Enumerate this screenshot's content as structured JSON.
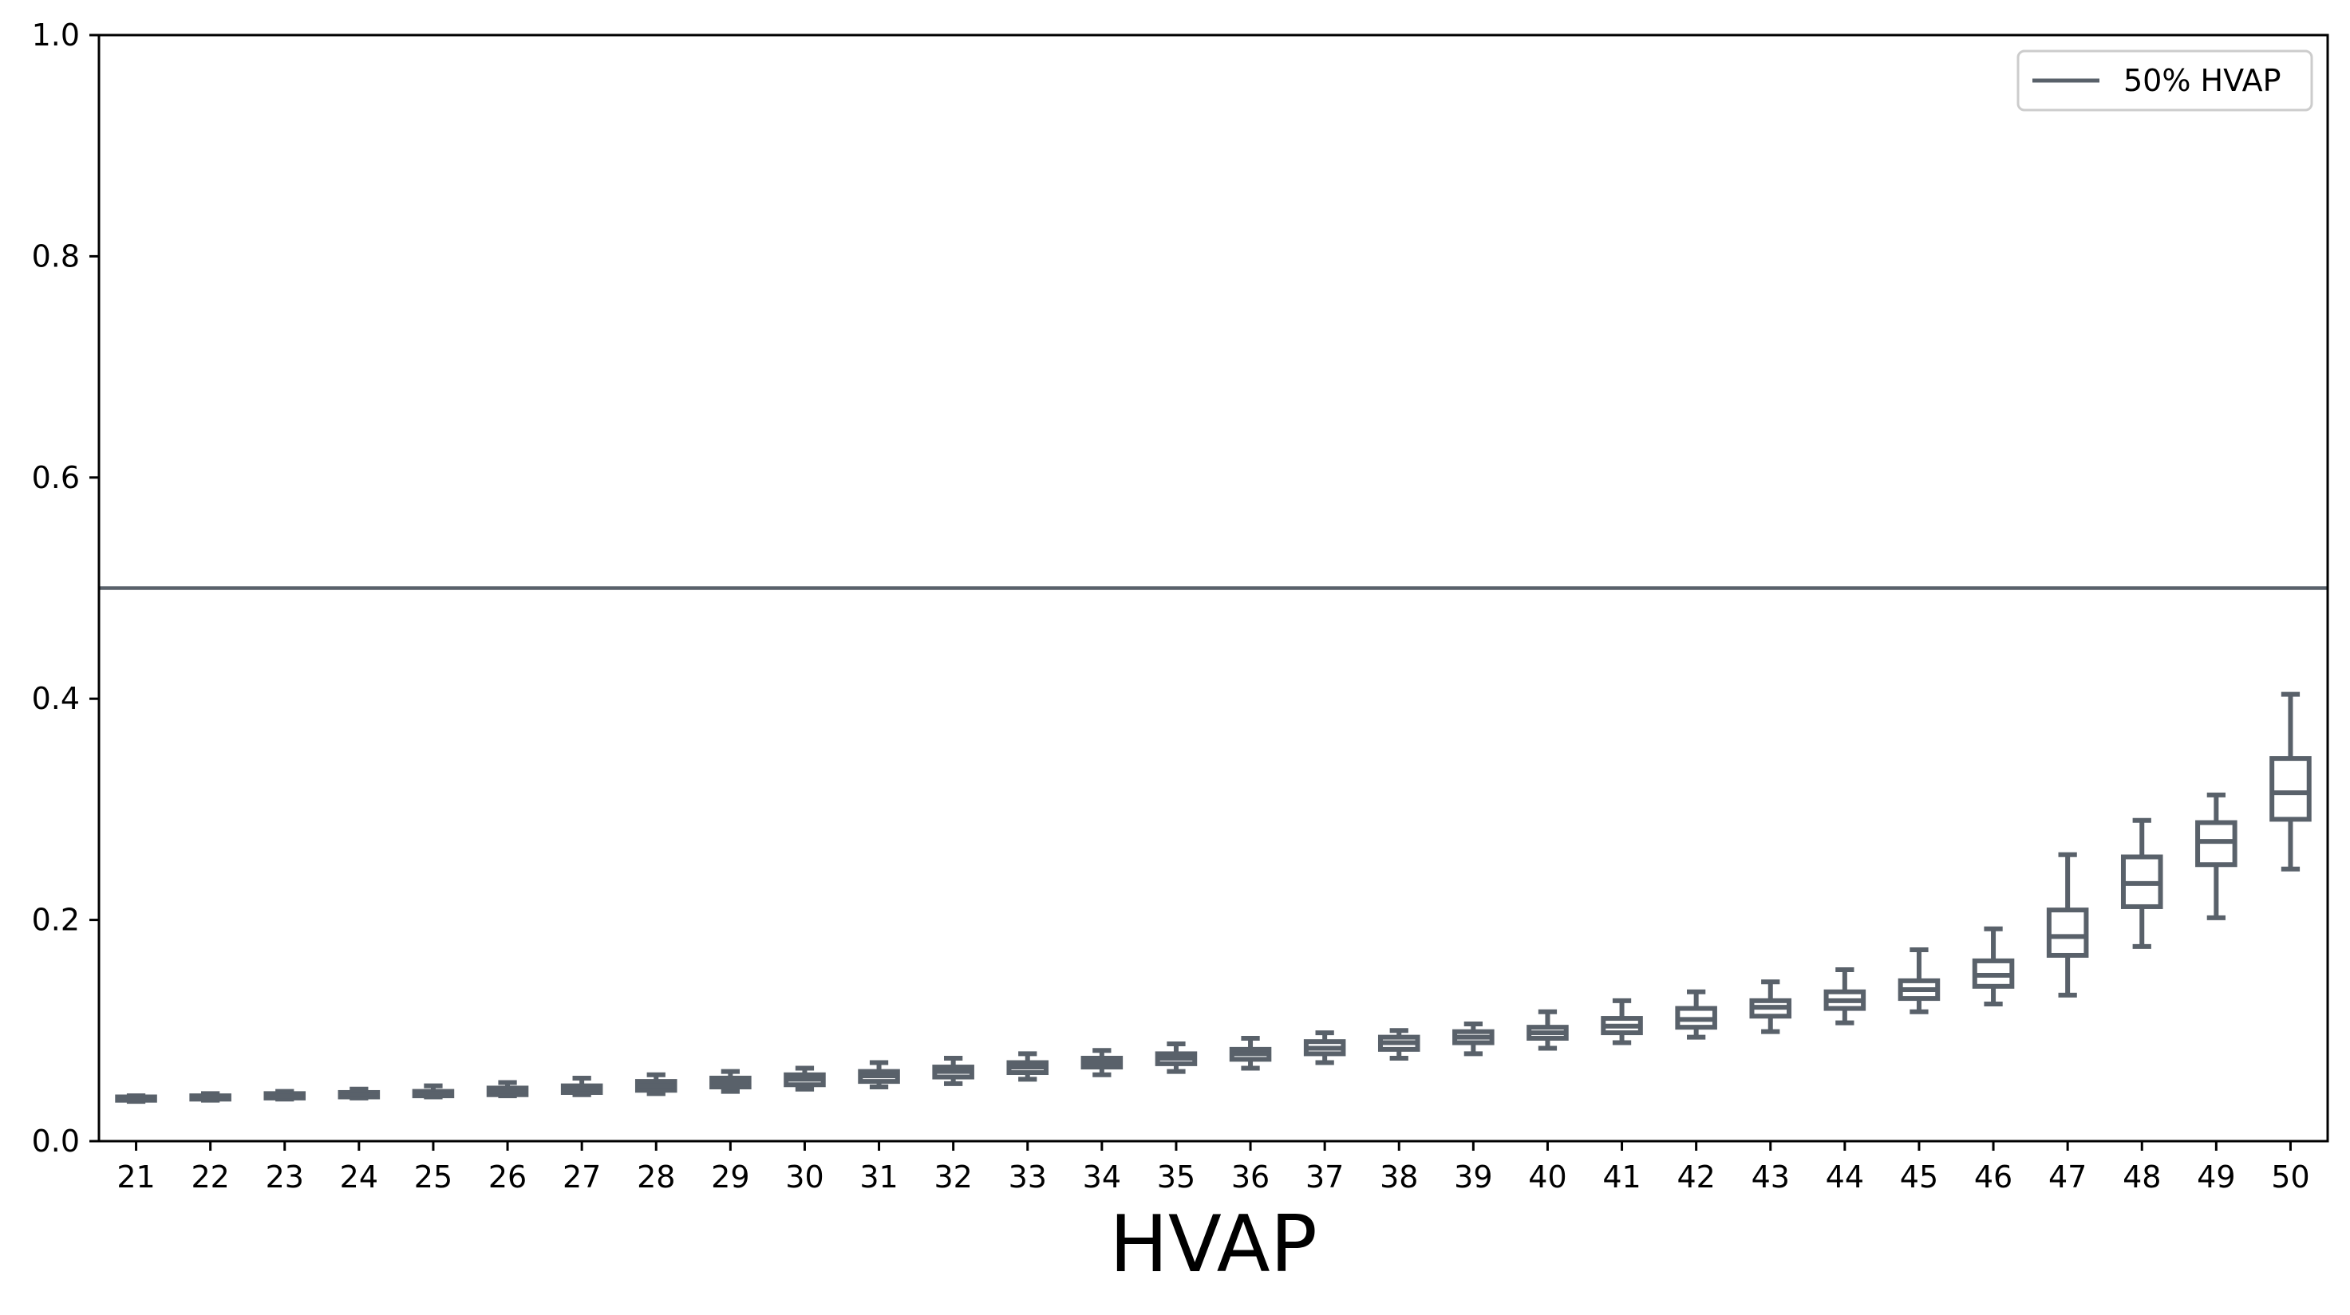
{
  "chart_data": {
    "type": "box",
    "title": "",
    "xlabel": "HVAP",
    "ylabel": "",
    "ylim": [
      0.0,
      1.0
    ],
    "yticks": [
      "0.0",
      "0.2",
      "0.4",
      "0.6",
      "0.8",
      "1.0"
    ],
    "categories": [
      "21",
      "22",
      "23",
      "24",
      "25",
      "26",
      "27",
      "28",
      "29",
      "30",
      "31",
      "32",
      "33",
      "34",
      "35",
      "36",
      "37",
      "38",
      "39",
      "40",
      "41",
      "42",
      "43",
      "44",
      "45",
      "46",
      "47",
      "48",
      "49",
      "50"
    ],
    "series": [
      {
        "boxes": [
          {
            "whislo": 0.036,
            "q1": 0.037,
            "med": 0.038,
            "q3": 0.04,
            "whishi": 0.041
          },
          {
            "whislo": 0.037,
            "q1": 0.038,
            "med": 0.04,
            "q3": 0.041,
            "whishi": 0.043
          },
          {
            "whislo": 0.038,
            "q1": 0.039,
            "med": 0.041,
            "q3": 0.043,
            "whishi": 0.045
          },
          {
            "whislo": 0.039,
            "q1": 0.04,
            "med": 0.042,
            "q3": 0.044,
            "whishi": 0.047
          },
          {
            "whislo": 0.04,
            "q1": 0.041,
            "med": 0.043,
            "q3": 0.045,
            "whishi": 0.05
          },
          {
            "whislo": 0.041,
            "q1": 0.042,
            "med": 0.045,
            "q3": 0.048,
            "whishi": 0.053
          },
          {
            "whislo": 0.042,
            "q1": 0.044,
            "med": 0.047,
            "q3": 0.05,
            "whishi": 0.057
          },
          {
            "whislo": 0.043,
            "q1": 0.046,
            "med": 0.05,
            "q3": 0.054,
            "whishi": 0.06
          },
          {
            "whislo": 0.045,
            "q1": 0.049,
            "med": 0.053,
            "q3": 0.057,
            "whishi": 0.063
          },
          {
            "whislo": 0.047,
            "q1": 0.051,
            "med": 0.056,
            "q3": 0.06,
            "whishi": 0.066
          },
          {
            "whislo": 0.049,
            "q1": 0.054,
            "med": 0.059,
            "q3": 0.063,
            "whishi": 0.071
          },
          {
            "whislo": 0.052,
            "q1": 0.058,
            "med": 0.063,
            "q3": 0.067,
            "whishi": 0.075
          },
          {
            "whislo": 0.056,
            "q1": 0.062,
            "med": 0.067,
            "q3": 0.071,
            "whishi": 0.079
          },
          {
            "whislo": 0.06,
            "q1": 0.067,
            "med": 0.071,
            "q3": 0.075,
            "whishi": 0.082
          },
          {
            "whislo": 0.063,
            "q1": 0.07,
            "med": 0.075,
            "q3": 0.079,
            "whishi": 0.088
          },
          {
            "whislo": 0.066,
            "q1": 0.074,
            "med": 0.079,
            "q3": 0.083,
            "whishi": 0.093
          },
          {
            "whislo": 0.071,
            "q1": 0.079,
            "med": 0.084,
            "q3": 0.09,
            "whishi": 0.098
          },
          {
            "whislo": 0.075,
            "q1": 0.083,
            "med": 0.089,
            "q3": 0.094,
            "whishi": 0.1
          },
          {
            "whislo": 0.079,
            "q1": 0.089,
            "med": 0.094,
            "q3": 0.099,
            "whishi": 0.106
          },
          {
            "whislo": 0.084,
            "q1": 0.093,
            "med": 0.098,
            "q3": 0.103,
            "whishi": 0.117
          },
          {
            "whislo": 0.089,
            "q1": 0.098,
            "med": 0.104,
            "q3": 0.111,
            "whishi": 0.127
          },
          {
            "whislo": 0.094,
            "q1": 0.103,
            "med": 0.11,
            "q3": 0.12,
            "whishi": 0.135
          },
          {
            "whislo": 0.099,
            "q1": 0.113,
            "med": 0.121,
            "q3": 0.127,
            "whishi": 0.144
          },
          {
            "whislo": 0.107,
            "q1": 0.12,
            "med": 0.127,
            "q3": 0.135,
            "whishi": 0.155
          },
          {
            "whislo": 0.117,
            "q1": 0.129,
            "med": 0.137,
            "q3": 0.145,
            "whishi": 0.173
          },
          {
            "whislo": 0.124,
            "q1": 0.14,
            "med": 0.15,
            "q3": 0.163,
            "whishi": 0.192
          },
          {
            "whislo": 0.132,
            "q1": 0.168,
            "med": 0.185,
            "q3": 0.209,
            "whishi": 0.259
          },
          {
            "whislo": 0.176,
            "q1": 0.212,
            "med": 0.233,
            "q3": 0.257,
            "whishi": 0.29
          },
          {
            "whislo": 0.202,
            "q1": 0.25,
            "med": 0.271,
            "q3": 0.288,
            "whishi": 0.313
          },
          {
            "whislo": 0.246,
            "q1": 0.291,
            "med": 0.315,
            "q3": 0.346,
            "whishi": 0.404
          }
        ]
      }
    ],
    "reference_line": {
      "y": 0.5,
      "label": "50% HVAP"
    },
    "legend": {
      "position": "top-right",
      "entries": [
        "50% HVAP"
      ]
    },
    "grid": false,
    "colors": {
      "box": "#59616a",
      "axes": "#000000",
      "legend_border": "#cccccc"
    }
  }
}
